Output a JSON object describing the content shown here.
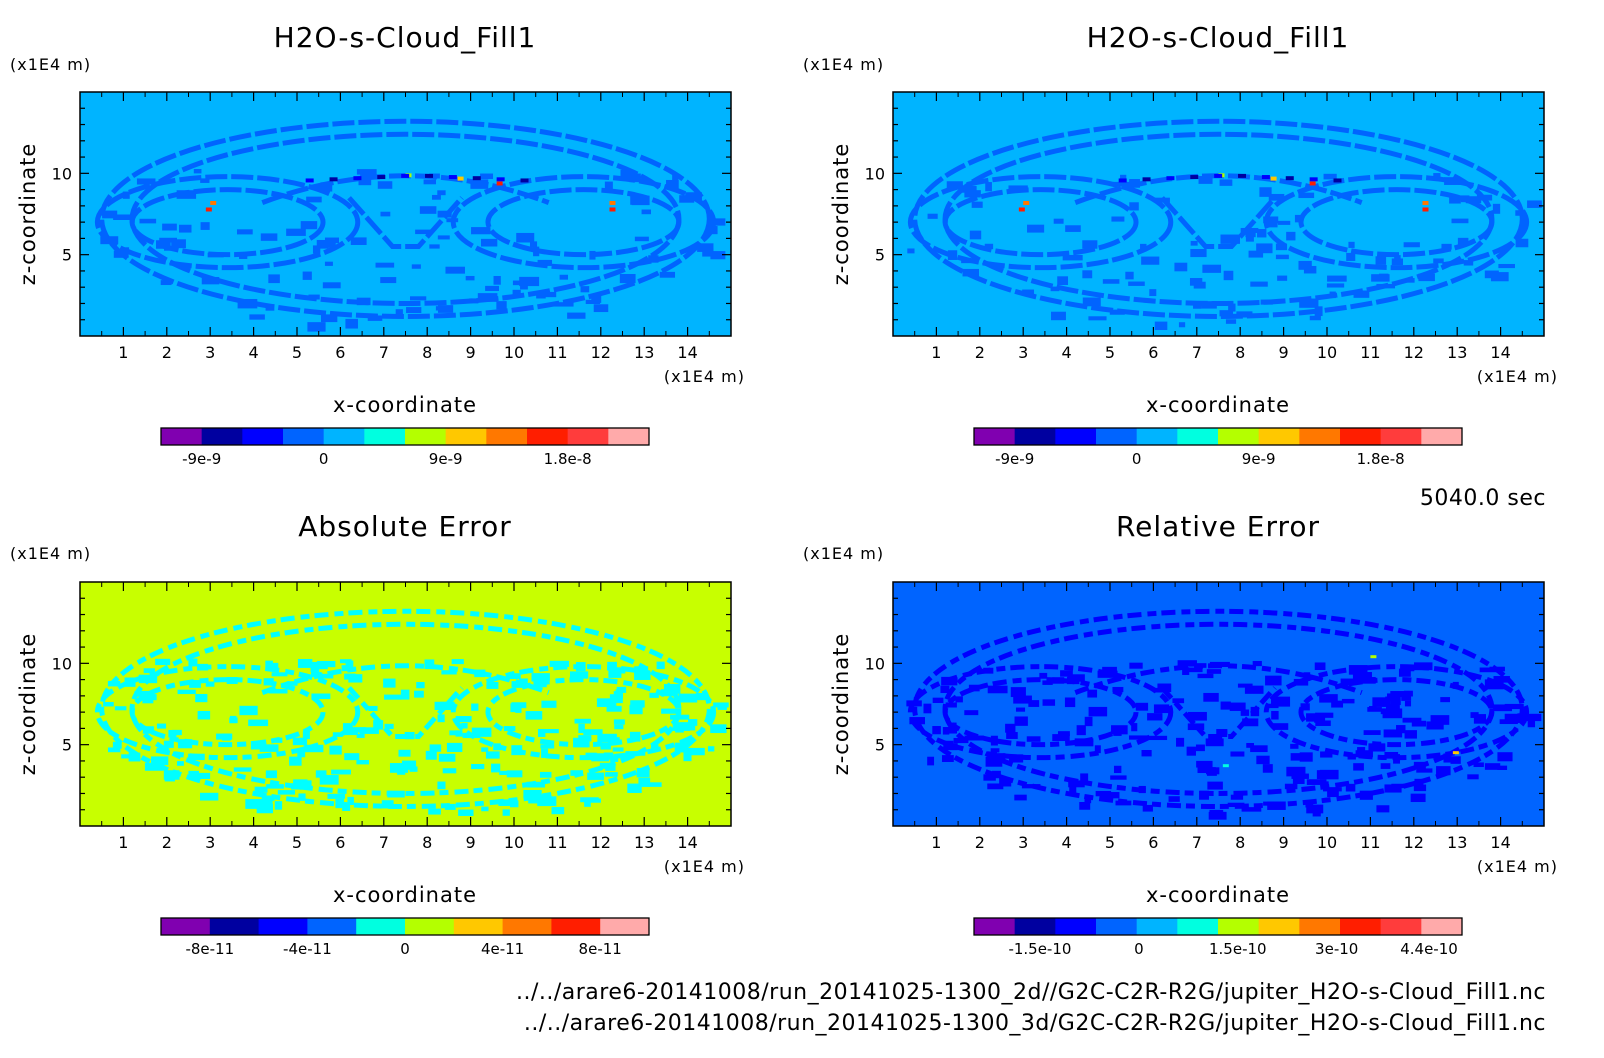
{
  "time_label": "5040.0 sec",
  "footer": {
    "line1": "../../arare6-20141008/run_20141025-1300_2d//G2C-C2R-R2G/jupiter_H2O-s-Cloud_Fill1.nc",
    "line2": "../../arare6-20141008/run_20141025-1300_3d/G2C-C2R-R2G/jupiter_H2O-s-Cloud_Fill1.nc"
  },
  "colors": {
    "palette": [
      "#8000b0",
      "#0000a0",
      "#0000ff",
      "#0064ff",
      "#00b4ff",
      "#00ffe0",
      "#b4ff00",
      "#ffc800",
      "#ff7800",
      "#ff1e00",
      "#ff3c3c",
      "#ffaaaa"
    ],
    "tick_color": "#000000"
  },
  "chart_data": [
    {
      "type": "heatmap",
      "title": "H2O-s-Cloud_Fill1",
      "xlabel": "x-coordinate",
      "ylabel": "z-coordinate",
      "x_unit": "(x1E4 m)",
      "y_unit": "(x1E4 m)",
      "xlim": [
        0,
        15
      ],
      "ylim": [
        0,
        15
      ],
      "x_ticks": [
        1,
        2,
        3,
        4,
        5,
        6,
        7,
        8,
        9,
        10,
        11,
        12,
        13,
        14
      ],
      "y_ticks": [
        5,
        10
      ],
      "background_color": "#00b4ff",
      "pattern_color": "#0064ff",
      "colorbar": {
        "levels": 12,
        "tick_labels": [
          "-9e-9",
          "0",
          "9e-9",
          "1.8e-8"
        ],
        "tick_values": [
          -9e-09,
          0,
          9e-09,
          1.8e-08
        ],
        "range": [
          -1.2e-08,
          2.4e-08
        ]
      }
    },
    {
      "type": "heatmap",
      "title": "H2O-s-Cloud_Fill1",
      "xlabel": "x-coordinate",
      "ylabel": "z-coordinate",
      "x_unit": "(x1E4 m)",
      "y_unit": "(x1E4 m)",
      "xlim": [
        0,
        15
      ],
      "ylim": [
        0,
        15
      ],
      "x_ticks": [
        1,
        2,
        3,
        4,
        5,
        6,
        7,
        8,
        9,
        10,
        11,
        12,
        13,
        14
      ],
      "y_ticks": [
        5,
        10
      ],
      "background_color": "#00b4ff",
      "pattern_color": "#0064ff",
      "colorbar": {
        "levels": 12,
        "tick_labels": [
          "-9e-9",
          "0",
          "9e-9",
          "1.8e-8"
        ],
        "tick_values": [
          -9e-09,
          0,
          9e-09,
          1.8e-08
        ],
        "range": [
          -1.2e-08,
          2.4e-08
        ]
      }
    },
    {
      "type": "heatmap",
      "title": "Absolute Error",
      "xlabel": "x-coordinate",
      "ylabel": "z-coordinate",
      "x_unit": "(x1E4 m)",
      "y_unit": "(x1E4 m)",
      "xlim": [
        0,
        15
      ],
      "ylim": [
        0,
        15
      ],
      "x_ticks": [
        1,
        2,
        3,
        4,
        5,
        6,
        7,
        8,
        9,
        10,
        11,
        12,
        13,
        14
      ],
      "y_ticks": [
        5,
        10
      ],
      "background_color": "#c8ff00",
      "pattern_color": "#00ffff",
      "colorbar": {
        "levels": 10,
        "tick_labels": [
          "-8e-11",
          "-4e-11",
          "0",
          "4e-11",
          "8e-11"
        ],
        "tick_values": [
          -8e-11,
          -4e-11,
          0,
          4e-11,
          8e-11
        ],
        "range": [
          -1e-10,
          1e-10
        ]
      }
    },
    {
      "type": "heatmap",
      "title": "Relative Error",
      "xlabel": "x-coordinate",
      "ylabel": "z-coordinate",
      "x_unit": "(x1E4 m)",
      "y_unit": "(x1E4 m)",
      "xlim": [
        0,
        15
      ],
      "ylim": [
        0,
        15
      ],
      "x_ticks": [
        1,
        2,
        3,
        4,
        5,
        6,
        7,
        8,
        9,
        10,
        11,
        12,
        13,
        14
      ],
      "y_ticks": [
        5,
        10
      ],
      "background_color": "#0064ff",
      "pattern_color": "#0000ff",
      "colorbar": {
        "levels": 12,
        "tick_labels": [
          "-1.5e-10",
          "0",
          "1.5e-10",
          "3e-10",
          "4.4e-10"
        ],
        "tick_values": [
          -1.5e-10,
          0,
          1.5e-10,
          3e-10,
          4.4e-10
        ],
        "range": [
          -2.5e-10,
          4.9e-10
        ]
      }
    }
  ]
}
